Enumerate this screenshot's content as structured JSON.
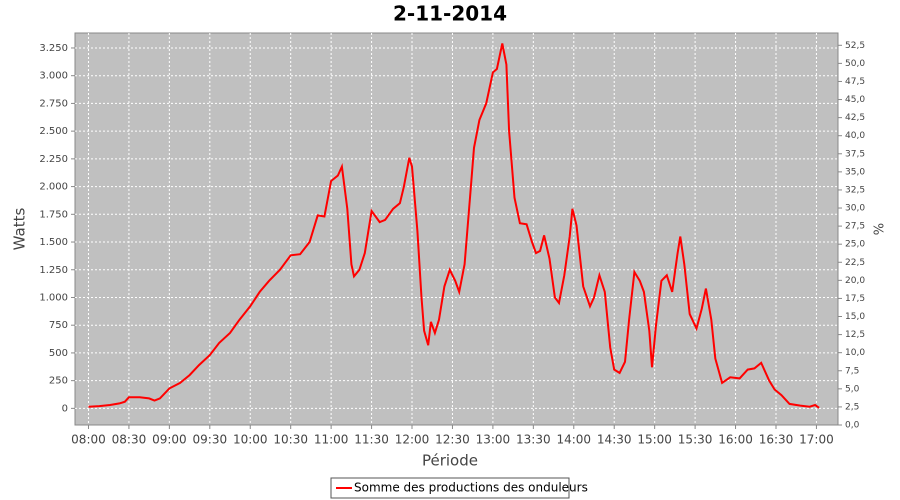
{
  "chart_data": {
    "type": "line",
    "title": "2-11-2014",
    "xlabel": "Période",
    "ylabel": "Watts",
    "y2label": "%",
    "x": [
      "08:00",
      "08:08",
      "08:16",
      "08:23",
      "08:27",
      "08:30",
      "08:38",
      "08:45",
      "08:49",
      "08:53",
      "09:00",
      "09:08",
      "09:15",
      "09:22",
      "09:30",
      "09:37",
      "09:45",
      "09:52",
      "10:00",
      "10:07",
      "10:14",
      "10:22",
      "10:30",
      "10:37",
      "10:44",
      "10:50",
      "10:55",
      "11:00",
      "11:05",
      "11:08",
      "11:12",
      "11:15",
      "11:17",
      "11:21",
      "11:25",
      "11:30",
      "11:36",
      "11:40",
      "11:46",
      "11:51",
      "11:54",
      "11:58",
      "12:00",
      "12:04",
      "12:07",
      "12:09",
      "12:12",
      "12:14",
      "12:17",
      "12:20",
      "12:24",
      "12:28",
      "12:32",
      "12:35",
      "12:39",
      "12:43",
      "12:46",
      "12:50",
      "12:55",
      "13:00",
      "13:03",
      "13:07",
      "13:10",
      "13:12",
      "13:16",
      "13:20",
      "13:25",
      "13:29",
      "13:32",
      "13:35",
      "13:38",
      "13:42",
      "13:46",
      "13:49",
      "13:53",
      "13:57",
      "13:59",
      "14:02",
      "14:07",
      "14:12",
      "14:15",
      "14:19",
      "14:23",
      "14:27",
      "14:30",
      "14:34",
      "14:38",
      "14:41",
      "14:45",
      "14:49",
      "14:52",
      "14:56",
      "14:58",
      "15:01",
      "15:05",
      "15:09",
      "15:13",
      "15:17",
      "15:19",
      "15:22",
      "15:26",
      "15:31",
      "15:35",
      "15:38",
      "15:42",
      "15:45",
      "15:50",
      "15:56",
      "16:03",
      "16:09",
      "16:14",
      "16:19",
      "16:25",
      "16:29",
      "16:34",
      "16:40",
      "16:48",
      "16:55",
      "16:59",
      "17:02"
    ],
    "series": [
      {
        "name": "Somme des productions des onduleurs",
        "color": "#ff0000",
        "values": [
          15,
          20,
          30,
          45,
          60,
          100,
          100,
          90,
          70,
          90,
          180,
          230,
          300,
          390,
          480,
          590,
          680,
          800,
          920,
          1050,
          1150,
          1250,
          1380,
          1390,
          1500,
          1740,
          1730,
          2050,
          2100,
          2180,
          1800,
          1300,
          1190,
          1250,
          1400,
          1780,
          1680,
          1700,
          1800,
          1850,
          2000,
          2260,
          2180,
          1600,
          1000,
          700,
          570,
          780,
          680,
          800,
          1100,
          1250,
          1150,
          1050,
          1300,
          1900,
          2350,
          2600,
          2750,
          3030,
          3060,
          3290,
          3100,
          2500,
          1900,
          1670,
          1660,
          1500,
          1400,
          1420,
          1560,
          1350,
          1000,
          950,
          1200,
          1550,
          1800,
          1650,
          1100,
          920,
          1000,
          1200,
          1050,
          550,
          350,
          320,
          420,
          800,
          1230,
          1150,
          1050,
          700,
          370,
          750,
          1150,
          1200,
          1050,
          1400,
          1550,
          1300,
          850,
          720,
          900,
          1080,
          800,
          450,
          230,
          280,
          270,
          350,
          360,
          410,
          250,
          170,
          120,
          40,
          25,
          15,
          30,
          5
        ]
      }
    ],
    "xlim": [
      "07:50",
      "17:16"
    ],
    "xticks": [
      "08:00",
      "08:30",
      "09:00",
      "09:30",
      "10:00",
      "10:30",
      "11:00",
      "11:30",
      "12:00",
      "12:30",
      "13:00",
      "13:30",
      "14:00",
      "14:30",
      "15:00",
      "15:30",
      "16:00",
      "16:30",
      "17:00"
    ],
    "ylim": [
      -150,
      3385
    ],
    "yticks": [
      0,
      250,
      500,
      750,
      {
        "value": 1000,
        "label": "1.000"
      },
      {
        "value": 1250,
        "label": "1.250"
      },
      {
        "value": 1500,
        "label": "1.500"
      },
      {
        "value": 1750,
        "label": "1.750"
      },
      {
        "value": 2000,
        "label": "2.000"
      },
      {
        "value": 2250,
        "label": "2.250"
      },
      {
        "value": 2500,
        "label": "2.500"
      },
      {
        "value": 2750,
        "label": "2.750"
      },
      {
        "value": 3000,
        "label": "3.000"
      },
      {
        "value": 3250,
        "label": "3.250"
      }
    ],
    "y2lim": [
      0,
      54.2
    ],
    "y2ticks": [
      {
        "value": 0,
        "label": "0,0"
      },
      {
        "value": 2.5,
        "label": "2,5"
      },
      {
        "value": 5,
        "label": "5,0"
      },
      {
        "value": 7.5,
        "label": "7,5"
      },
      {
        "value": 10,
        "label": "10,0"
      },
      {
        "value": 12.5,
        "label": "12,5"
      },
      {
        "value": 15,
        "label": "15,0"
      },
      {
        "value": 17.5,
        "label": "17,5"
      },
      {
        "value": 20,
        "label": "20,0"
      },
      {
        "value": 22.5,
        "label": "22,5"
      },
      {
        "value": 25,
        "label": "25,0"
      },
      {
        "value": 27.5,
        "label": "27,5"
      },
      {
        "value": 30,
        "label": "30,0"
      },
      {
        "value": 32.5,
        "label": "32,5"
      },
      {
        "value": 35,
        "label": "35,0"
      },
      {
        "value": 37.5,
        "label": "37,5"
      },
      {
        "value": 40,
        "label": "40,0"
      },
      {
        "value": 42.5,
        "label": "42,5"
      },
      {
        "value": 45,
        "label": "45,0"
      },
      {
        "value": 47.5,
        "label": "47,5"
      },
      {
        "value": 50,
        "label": "50,0"
      },
      {
        "value": 52.5,
        "label": "52,5"
      }
    ],
    "grid": true
  }
}
